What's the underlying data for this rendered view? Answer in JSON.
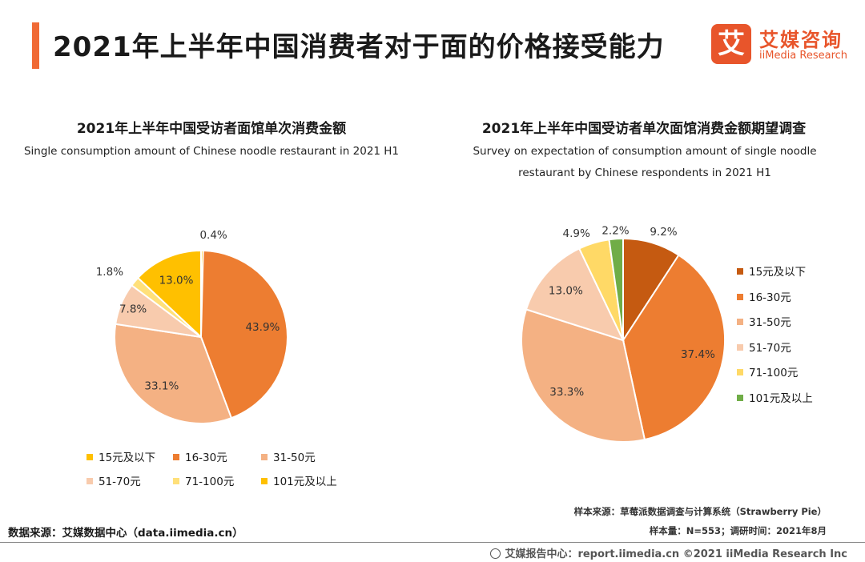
{
  "header": {
    "title": "2021年上半年中国消费者对于面的价格接受能力",
    "logo_mark": "艾",
    "logo_cn": "艾媒咨询",
    "logo_en": "iiMedia Research"
  },
  "chart_data": [
    {
      "type": "pie",
      "title": "2021年上半年中国受访者面馆单次消费金额",
      "subtitle": "Single consumption amount of Chinese noodle restaurant in 2021 H1",
      "categories": [
        "15元及以下",
        "16-30元",
        "31-50元",
        "51-70元",
        "71-100元",
        "101元及以上"
      ],
      "values": [
        0.4,
        43.9,
        33.1,
        7.8,
        1.8,
        13.0
      ],
      "labels": [
        "0.4%",
        "43.9%",
        "33.1%",
        "7.8%",
        "1.8%",
        "13.0%"
      ],
      "colors": [
        "#ffc000",
        "#ed7d31",
        "#f4b183",
        "#f8cbad",
        "#ffe07a",
        "#ffc000"
      ],
      "legend": "bottom"
    },
    {
      "type": "pie",
      "title": "2021年上半年中国受访者单次面馆消费金额期望调查",
      "subtitle_lines": [
        "Survey on expectation of consumption amount of single noodle",
        "restaurant by Chinese respondents in 2021 H1"
      ],
      "categories": [
        "15元及以下",
        "16-30元",
        "31-50元",
        "51-70元",
        "71-100元",
        "101元及以上"
      ],
      "values": [
        9.2,
        37.4,
        33.3,
        13.0,
        4.9,
        2.2
      ],
      "labels": [
        "9.2%",
        "37.4%",
        "33.3%",
        "13.0%",
        "4.9%",
        "2.2%"
      ],
      "colors": [
        "#c55a11",
        "#ed7d31",
        "#f4b183",
        "#f8cbad",
        "#ffd966",
        "#70ad47"
      ],
      "legend": "right"
    }
  ],
  "footer": {
    "source": "数据来源：艾媒数据中心（data.iimedia.cn）",
    "sample_source": "样本来源：草莓派数据调查与计算系统（Strawberry Pie）",
    "sample_info": "样本量：N=553；调研时间：2021年8月",
    "copyright": "艾媒报告中心：report.iimedia.cn ©2021  iiMedia Research  Inc"
  }
}
